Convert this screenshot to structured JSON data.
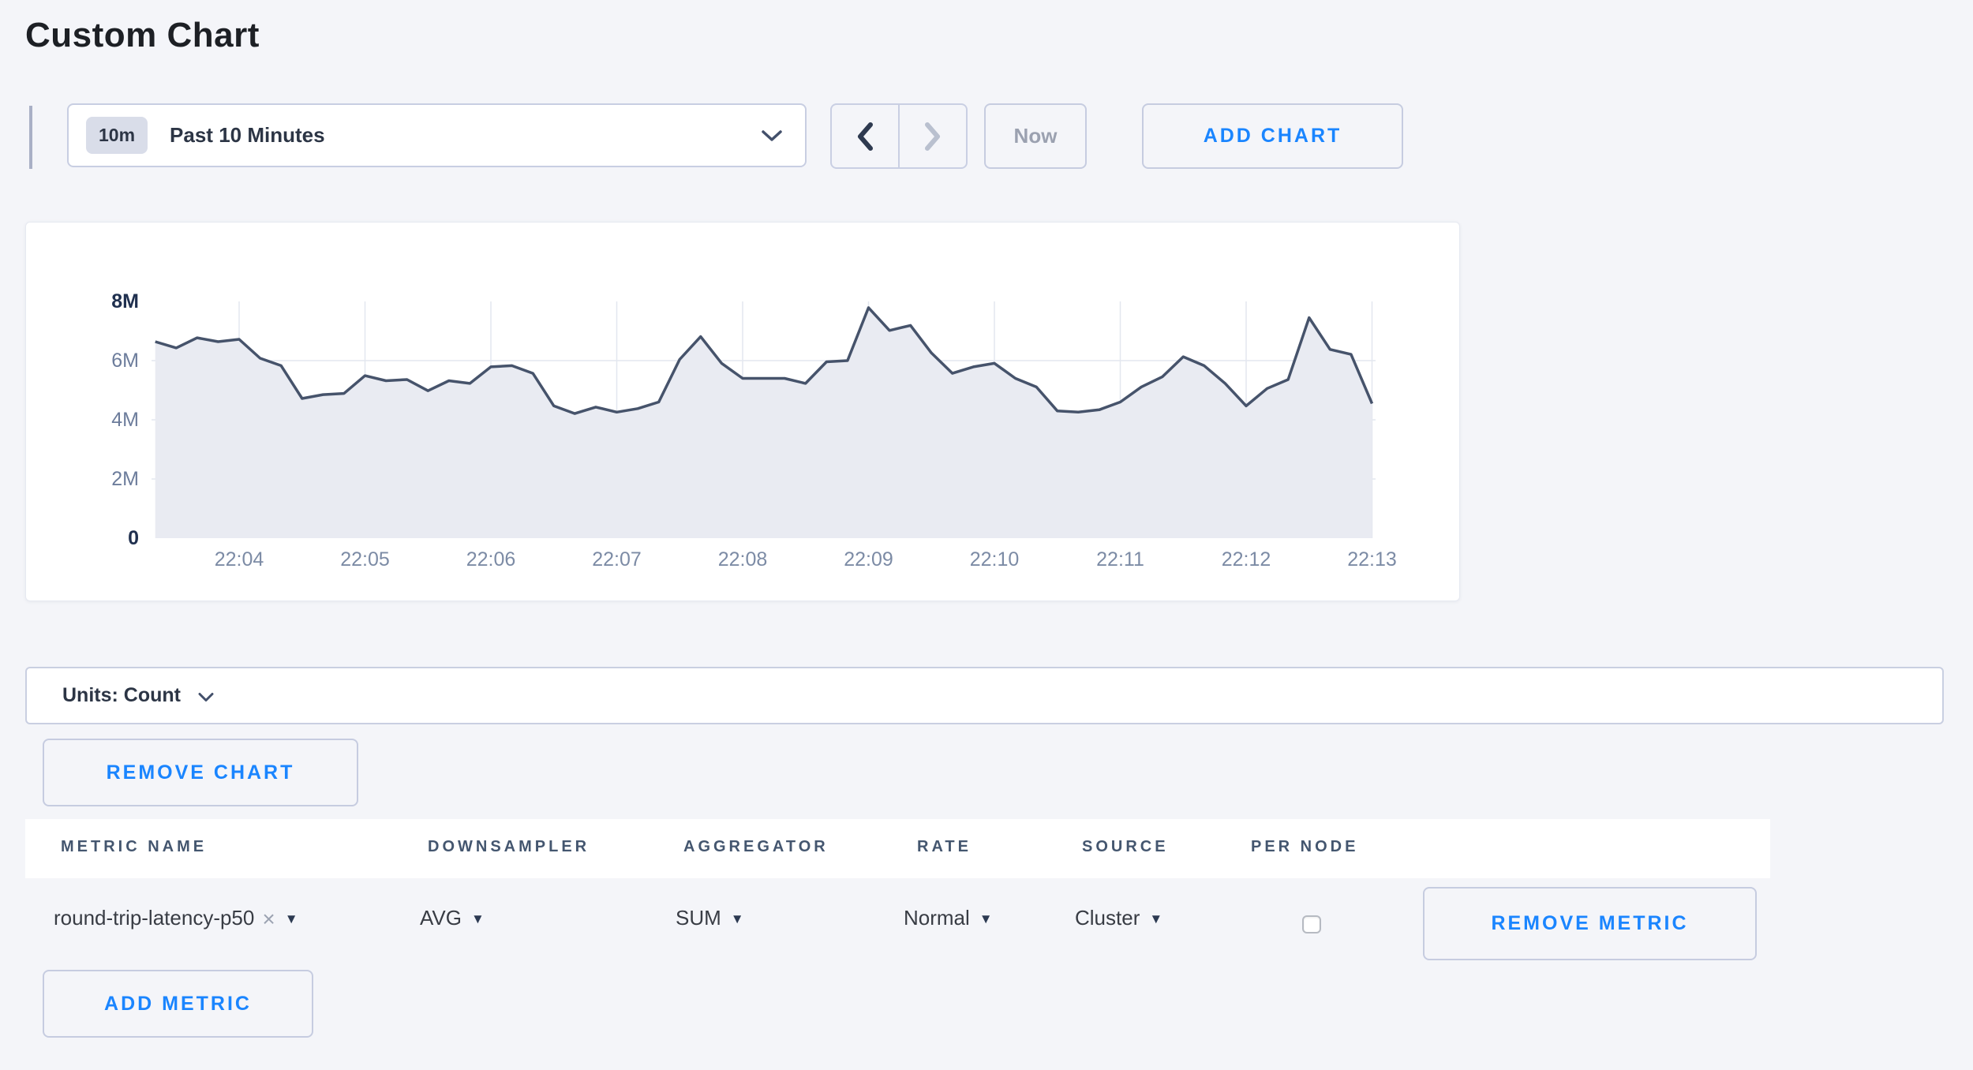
{
  "page": {
    "title": "Custom Chart"
  },
  "toolbar": {
    "time_scale_badge": "10m",
    "time_scale_label": "Past 10 Minutes",
    "now_label": "Now",
    "add_chart_label": "ADD CHART"
  },
  "chart_data": {
    "type": "area",
    "title": "",
    "xlabel": "",
    "ylabel": "Count",
    "ylim": [
      0,
      8000000
    ],
    "y_tick_labels": [
      "0",
      "2M",
      "4M",
      "6M",
      "8M"
    ],
    "x_tick_labels": [
      "22:04",
      "22:05",
      "22:06",
      "22:07",
      "22:08",
      "22:09",
      "22:10",
      "22:11",
      "22:12",
      "22:13"
    ],
    "grid": true,
    "legend": false,
    "x_start_time": "22:03:20",
    "x_interval_seconds": 10,
    "series": [
      {
        "name": "round-trip-latency-p50",
        "unit": "Count",
        "values_millions": [
          6.64,
          6.43,
          6.77,
          6.64,
          6.72,
          6.08,
          5.83,
          4.72,
          4.85,
          4.89,
          5.49,
          5.32,
          5.36,
          4.98,
          5.32,
          5.23,
          5.79,
          5.83,
          5.57,
          4.47,
          4.21,
          4.43,
          4.26,
          4.38,
          4.6,
          6.04,
          6.81,
          5.91,
          5.4,
          5.4,
          5.4,
          5.23,
          5.96,
          6.0,
          7.79,
          7.02,
          7.19,
          6.26,
          5.57,
          5.79,
          5.91,
          5.4,
          5.11,
          4.3,
          4.26,
          4.34,
          4.6,
          5.11,
          5.45,
          6.13,
          5.83,
          5.23,
          4.47,
          5.06,
          5.36,
          7.45,
          6.38,
          6.21,
          4.55
        ]
      }
    ],
    "style": {
      "line_color": "#46536b",
      "area_fill": "#e9ebf2",
      "gridline_color": "#e3e7ef"
    }
  },
  "units_bar": {
    "label": "Units: Count"
  },
  "buttons": {
    "remove_chart_label": "REMOVE CHART",
    "remove_metric_label": "REMOVE METRIC",
    "add_metric_label": "ADD METRIC"
  },
  "table": {
    "headers": [
      "METRIC NAME",
      "DOWNSAMPLER",
      "AGGREGATOR",
      "RATE",
      "SOURCE",
      "PER NODE"
    ],
    "row": {
      "metric_name": "round-trip-latency-p50",
      "downsampler": "AVG",
      "aggregator": "SUM",
      "rate": "Normal",
      "source": "Cluster",
      "per_node_checked": false
    }
  },
  "icons": {
    "dropdown_triangle": "▼",
    "remove_tag": "×"
  },
  "colors": {
    "accent_blue": "#1a85ff",
    "page_bg": "#f4f5f9",
    "disabled_text": "#9ba1b0"
  }
}
